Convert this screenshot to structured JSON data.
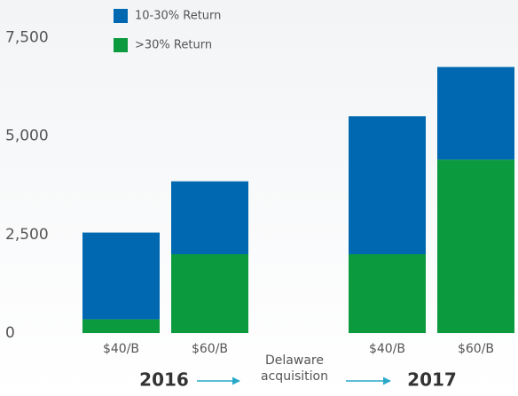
{
  "chart_data": {
    "type": "stacked_bar",
    "categories": [
      "$40/B",
      "$60/B",
      "$40/B",
      "$60/B"
    ],
    "series": [
      {
        "name": ">30% Return",
        "color": "#0b9a3e",
        "values": [
          350,
          2000,
          2000,
          4400
        ]
      },
      {
        "name": "10-30% Return",
        "color": "#0068b1",
        "values": [
          2200,
          1850,
          3500,
          2350
        ]
      }
    ],
    "ylim": [
      0,
      8450
    ],
    "yticks": [
      0,
      {
        "value": 2500,
        "label": "2,500"
      },
      {
        "value": 5000,
        "label": "5,000"
      },
      {
        "value": 7500,
        "label": "7,500"
      }
    ],
    "group_labels": [
      "2016",
      "2017"
    ],
    "annotation": "Delaware acquisition"
  }
}
